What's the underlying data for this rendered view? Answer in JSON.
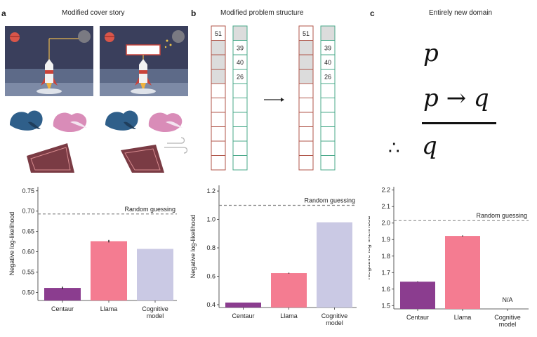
{
  "panels": [
    {
      "letter": "a",
      "title": "Modified cover story"
    },
    {
      "letter": "b",
      "title": "Modified problem structure"
    },
    {
      "letter": "c",
      "title": "Entirely new domain"
    }
  ],
  "grids": {
    "values_left": [
      "51",
      "39",
      "40",
      "26"
    ],
    "values_right": [
      "51",
      "39",
      "40",
      "26"
    ]
  },
  "logic": {
    "premise1": "p",
    "premise2": "p → q",
    "therefore": "∴",
    "conclusion": "q"
  },
  "chart_data": [
    {
      "type": "bar",
      "categories": [
        "Centaur",
        "Llama",
        "Cognitive model"
      ],
      "values": [
        0.511,
        0.626,
        0.607
      ],
      "errors": [
        0.003,
        0.003,
        0
      ],
      "ylabel": "Negative log-likelihood",
      "ylim": [
        0.48,
        0.76
      ],
      "yticks": [
        "0.50",
        "0.55",
        "0.60",
        "0.65",
        "0.70",
        "0.75"
      ],
      "reference_line": {
        "value": 0.693,
        "label": "Random guessing"
      },
      "colors": [
        "#8b3d8f",
        "#f47c91",
        "#cac9e4"
      ]
    },
    {
      "type": "bar",
      "categories": [
        "Centaur",
        "Llama",
        "Cognitive model"
      ],
      "values": [
        0.415,
        0.622,
        0.98
      ],
      "errors": [
        0,
        0.003,
        0
      ],
      "ylabel": "Negative log-likelihood",
      "ylim": [
        0.38,
        1.24
      ],
      "yticks": [
        "0.4",
        "0.6",
        "0.8",
        "1.0",
        "1.2"
      ],
      "reference_line": {
        "value": 1.099,
        "label": "Random guessing"
      },
      "colors": [
        "#8b3d8f",
        "#f47c91",
        "#cac9e4"
      ]
    },
    {
      "type": "bar",
      "categories": [
        "Centaur",
        "Llama",
        "Cognitive model"
      ],
      "values": [
        1.645,
        1.922,
        null
      ],
      "errors": [
        0.002,
        0.003,
        0
      ],
      "ylabel": "Negative log-likelihood",
      "ylim": [
        1.48,
        2.22
      ],
      "yticks": [
        "1.5",
        "1.6",
        "1.7",
        "1.8",
        "1.9",
        "2.0",
        "2.1",
        "2.2"
      ],
      "reference_line": {
        "value": 2.015,
        "label": "Random guessing"
      },
      "missing_label": "N/A",
      "colors": [
        "#8b3d8f",
        "#f47c91",
        "#cac9e4"
      ]
    }
  ]
}
